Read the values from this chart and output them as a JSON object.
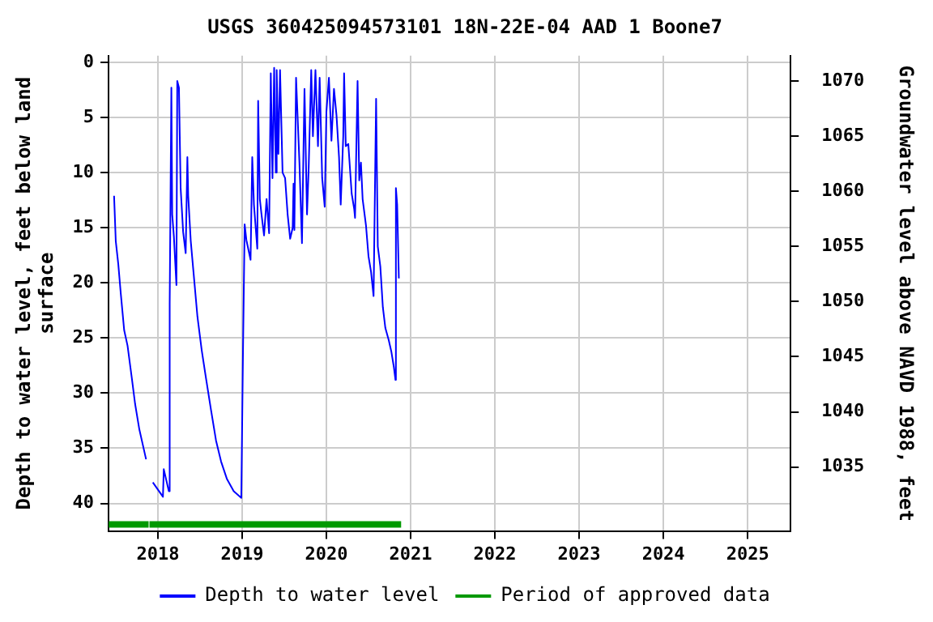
{
  "chart_data": {
    "type": "line",
    "title": "USGS 360425094573101 18N-22E-04 AAD 1 Boone7",
    "ylabel": "Depth to water level, feet below land surface",
    "y2label": "Groundwater level above NAVD 1988, feet",
    "series": [
      {
        "name": "Depth to water level",
        "color": "#0000ff",
        "x": [
          2017.48,
          2017.5,
          2017.53,
          2017.56,
          2017.6,
          2017.64,
          2017.69,
          2017.73,
          2017.78,
          2017.86,
          2017.9,
          2017.94,
          2018.06,
          2018.07,
          2018.13,
          2018.14,
          2018.16,
          2018.17,
          2018.19,
          2018.22,
          2018.23,
          2018.25,
          2018.27,
          2018.3,
          2018.33,
          2018.35,
          2018.36,
          2018.39,
          2018.42,
          2018.47,
          2018.52,
          2018.57,
          2018.63,
          2018.69,
          2018.75,
          2018.82,
          2018.9,
          2018.99,
          2019.01,
          2019.03,
          2019.05,
          2019.1,
          2019.12,
          2019.14,
          2019.18,
          2019.19,
          2019.21,
          2019.23,
          2019.26,
          2019.29,
          2019.32,
          2019.34,
          2019.36,
          2019.38,
          2019.4,
          2019.41,
          2019.43,
          2019.45,
          2019.48,
          2019.51,
          2019.54,
          2019.57,
          2019.6,
          2019.61,
          2019.62,
          2019.64,
          2019.68,
          2019.71,
          2019.74,
          2019.77,
          2019.79,
          2019.82,
          2019.84,
          2019.87,
          2019.9,
          2019.92,
          2019.95,
          2019.98,
          2020.0,
          2020.03,
          2020.06,
          2020.09,
          2020.12,
          2020.15,
          2020.17,
          2020.2,
          2020.21,
          2020.23,
          2020.26,
          2020.3,
          2020.33,
          2020.34,
          2020.37,
          2020.39,
          2020.41,
          2020.43,
          2020.47,
          2020.5,
          2020.53,
          2020.56,
          2020.59,
          2020.61,
          2020.64,
          2020.67,
          2020.7,
          2020.74,
          2020.77,
          2020.8,
          2020.82,
          2020.825,
          2020.84,
          2020.86
        ],
        "values": [
          12.1,
          16.2,
          18.3,
          21.0,
          24.3,
          25.7,
          28.6,
          31.0,
          33.3,
          36.0,
          null,
          38.1,
          39.4,
          36.9,
          38.9,
          21.9,
          2.3,
          13.8,
          15.8,
          20.2,
          1.7,
          2.3,
          11.4,
          15.4,
          17.3,
          8.6,
          12.1,
          16.2,
          18.8,
          23.1,
          26.1,
          28.6,
          31.5,
          34.3,
          36.2,
          37.8,
          38.9,
          39.5,
          26.3,
          14.7,
          16.1,
          17.9,
          8.6,
          12.9,
          16.9,
          3.5,
          12.4,
          13.8,
          15.7,
          12.4,
          15.5,
          1.0,
          10.5,
          0.5,
          10.0,
          0.7,
          8.3,
          0.7,
          10.0,
          10.5,
          13.8,
          16.0,
          15.0,
          11.0,
          15.2,
          1.4,
          9.1,
          16.4,
          2.4,
          13.8,
          9.5,
          0.7,
          6.7,
          0.7,
          7.6,
          1.4,
          10.5,
          13.1,
          4.5,
          1.4,
          7.1,
          2.4,
          4.8,
          8.6,
          12.9,
          6.7,
          1.0,
          7.6,
          7.4,
          11.9,
          13.3,
          14.1,
          1.7,
          10.7,
          9.1,
          12.4,
          14.8,
          17.6,
          19.0,
          21.2,
          3.3,
          16.7,
          18.5,
          22.2,
          24.1,
          25.2,
          26.2,
          27.6,
          28.8,
          11.4,
          12.9,
          19.6
        ]
      },
      {
        "name": "Period of approved data",
        "color": "#009900",
        "x": [
          2017.415,
          2017.89,
          2017.895,
          2017.9,
          2020.887
        ],
        "values": [
          41.9,
          41.9,
          null,
          41.9,
          41.9
        ]
      }
    ],
    "xlim": [
      2017.415,
      2025.51
    ],
    "xticks": [
      2018,
      2019,
      2020,
      2021,
      2022,
      2023,
      2024,
      2025
    ],
    "ylim": [
      42.5,
      -0.6
    ],
    "yticks": [
      0,
      5,
      10,
      15,
      20,
      25,
      30,
      35,
      40
    ],
    "y2lim": [
      1029.2,
      1072.3
    ],
    "y2ticks": [
      1035,
      1040,
      1045,
      1050,
      1055,
      1060,
      1065,
      1070
    ],
    "grid": true,
    "legend": "bottom",
    "marker": "none",
    "line_style": "solid"
  }
}
